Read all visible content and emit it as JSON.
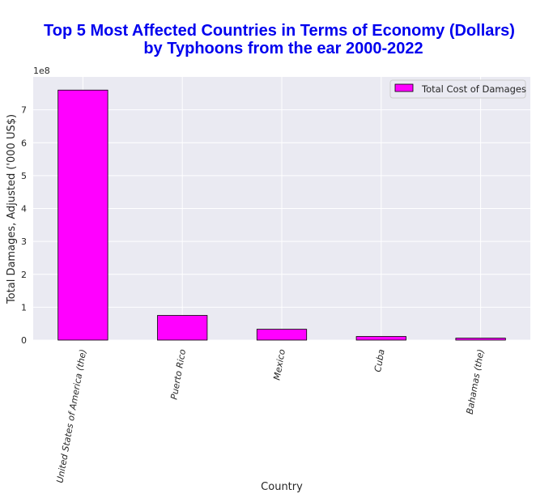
{
  "chart_data": {
    "type": "bar",
    "title_lines": [
      "Top 5 Most Affected Countries in Terms of Economy (Dollars)",
      "by Typhoons from the ear 2000-2022"
    ],
    "xlabel": "Country",
    "ylabel": "Total Damages, Adjusted ('000 US$)",
    "y_multiplier_label": "1e8",
    "y_ticks": [
      "0",
      "1",
      "2",
      "3",
      "4",
      "5",
      "6",
      "7"
    ],
    "ylim": [
      0,
      8
    ],
    "categories": [
      "United States of America (the)",
      "Puerto Rico",
      "Mexico",
      "Cuba",
      "Bahamas (the)"
    ],
    "series": [
      {
        "name": "Total Cost of Damages",
        "values": [
          7.6,
          0.75,
          0.33,
          0.11,
          0.06
        ],
        "color": "#ff00ff"
      }
    ],
    "grid": true,
    "legend_position": "top-right",
    "background": "#eaeaf2"
  }
}
